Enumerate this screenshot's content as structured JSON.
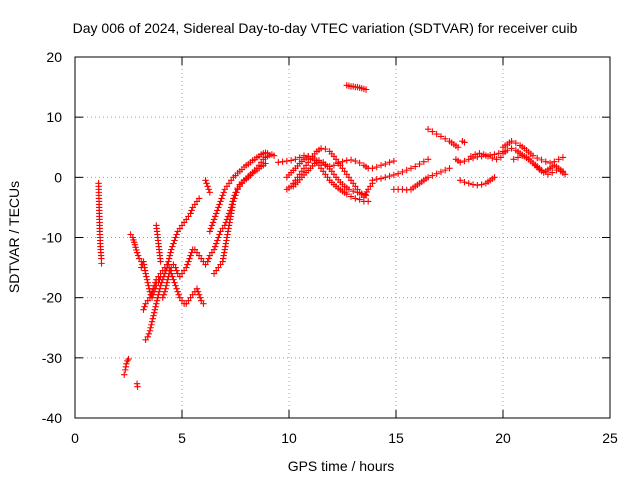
{
  "chart_data": {
    "type": "scatter",
    "title": "Day 006 of 2024, Sidereal Day-to-day VTEC variation (SDTVAR) for receiver cuib",
    "xlabel": "GPS time / hours",
    "ylabel": "SDTVAR / TECUs",
    "xlim": [
      0,
      25
    ],
    "ylim": [
      -40,
      20
    ],
    "xticks": [
      0,
      5,
      10,
      15,
      20,
      25
    ],
    "yticks": [
      -40,
      -30,
      -20,
      -10,
      0,
      10,
      20
    ],
    "xtick_labels": [
      "0",
      "5",
      "10",
      "15",
      "20",
      "25"
    ],
    "ytick_labels": [
      "-40",
      "-30",
      "-20",
      "-10",
      "0",
      "10",
      "20"
    ],
    "grid": true,
    "marker": "+",
    "color": "#ff0000",
    "series": [
      {
        "name": "t1",
        "x": [
          1.1,
          1.11,
          1.12,
          1.13,
          1.14,
          1.15,
          1.16,
          1.17,
          1.18,
          1.19,
          1.2,
          1.21,
          1.22,
          1.23,
          1.24
        ],
        "y": [
          -1,
          -2,
          -3.5,
          -5,
          -6.5,
          -8,
          -9,
          -10,
          -11,
          -11.5,
          -12,
          -12.5,
          -13,
          -13.5,
          -14.3
        ]
      },
      {
        "name": "t2",
        "x": [
          2.3,
          2.35,
          2.4,
          2.45,
          2.5
        ],
        "y": [
          -32.8,
          -32,
          -31,
          -30.5,
          -30.2
        ]
      },
      {
        "name": "t3",
        "x": [
          2.9,
          2.92
        ],
        "y": [
          -34.3,
          -34.8
        ]
      },
      {
        "name": "t4",
        "x": [
          2.6,
          2.7,
          2.8,
          2.9,
          3.0,
          3.1
        ],
        "y": [
          -9.5,
          -10,
          -11.2,
          -12.5,
          -13.5,
          -14
        ]
      },
      {
        "name": "t5",
        "x": [
          3.3,
          3.4,
          3.5,
          3.6,
          3.7,
          3.8,
          3.9,
          4.0,
          4.1,
          4.2,
          4.3,
          4.4,
          4.5,
          4.6,
          4.7,
          4.8,
          4.9,
          5.0,
          5.1,
          5.2,
          5.3,
          5.4,
          5.5,
          5.6,
          5.7,
          5.8
        ],
        "y": [
          -27,
          -26.5,
          -25.5,
          -24,
          -22.5,
          -21,
          -19.5,
          -18,
          -17,
          -16,
          -15,
          -13.5,
          -12,
          -11,
          -10,
          -9,
          -8.5,
          -8,
          -7.5,
          -7,
          -6.5,
          -6,
          -5,
          -4.5,
          -4,
          -3.5
        ]
      },
      {
        "name": "t6",
        "x": [
          3.2,
          3.3,
          3.4,
          3.5,
          3.6,
          3.7,
          3.8,
          3.9,
          4.0,
          4.1,
          4.2,
          4.3,
          4.4,
          4.5,
          4.6,
          4.7,
          4.8,
          4.9,
          5.0,
          5.1,
          5.2,
          5.3,
          5.4,
          5.5,
          5.6,
          5.7,
          5.8,
          5.9,
          6.0
        ],
        "y": [
          -22,
          -21,
          -20.5,
          -20,
          -19,
          -18,
          -17,
          -16.5,
          -16,
          -15.5,
          -15,
          -14.5,
          -15,
          -16,
          -17,
          -18,
          -19,
          -20,
          -20.5,
          -21,
          -21,
          -20.5,
          -20,
          -19.5,
          -19,
          -18.5,
          -19.5,
          -20.5,
          -21
        ]
      },
      {
        "name": "t7",
        "x": [
          3.1,
          3.2,
          3.3,
          3.4,
          3.5,
          3.6,
          3.7,
          3.8,
          3.9,
          4.0
        ],
        "y": [
          -15,
          -14,
          -16,
          -17.5,
          -19,
          -20,
          -19,
          -18,
          -17.5,
          -16.5
        ]
      },
      {
        "name": "t8",
        "x": [
          3.8,
          3.85,
          3.9,
          3.95,
          4.0
        ],
        "y": [
          -8,
          -9.5,
          -11,
          -12.5,
          -14
        ]
      },
      {
        "name": "t9",
        "x": [
          4.1,
          4.2,
          4.3,
          4.4,
          4.5,
          4.6,
          4.7,
          4.8,
          4.9,
          5.0,
          5.1,
          5.2,
          5.3,
          5.4,
          5.5,
          5.6,
          5.7,
          5.8,
          5.9,
          6.0,
          6.1,
          6.2,
          6.3,
          6.4,
          6.5,
          6.6,
          6.7,
          6.8,
          6.9,
          7.0,
          7.1,
          7.2,
          7.3,
          7.4,
          7.5,
          7.6,
          7.7,
          7.8,
          7.9,
          8.0,
          8.1,
          8.2,
          8.3,
          8.4,
          8.5,
          8.6,
          8.7,
          8.8,
          8.9
        ],
        "y": [
          -20,
          -19,
          -17.5,
          -16,
          -15,
          -14.5,
          -15,
          -16,
          -16.5,
          -16,
          -15.5,
          -15,
          -14,
          -13,
          -12,
          -12,
          -12.5,
          -13,
          -13.5,
          -14,
          -14.5,
          -14,
          -13,
          -12.5,
          -12,
          -11,
          -10,
          -9,
          -8.5,
          -8,
          -7,
          -6,
          -5,
          -3.5,
          -2.5,
          -1.8,
          -1.2,
          -0.8,
          -0.5,
          -0.3,
          0,
          0.3,
          0.7,
          1,
          1.2,
          1.5,
          1.8,
          2,
          2.3
        ]
      },
      {
        "name": "t10",
        "x": [
          6.3,
          6.4,
          6.5,
          6.6,
          6.7,
          6.8,
          6.9,
          7.0,
          7.1,
          7.2,
          7.3,
          7.4,
          7.5,
          7.6,
          7.7,
          7.8,
          7.9,
          8.0,
          8.1,
          8.2,
          8.3,
          8.4,
          8.5,
          8.6,
          8.7,
          8.8,
          8.9,
          9.0
        ],
        "y": [
          -9,
          -8,
          -7,
          -6,
          -5,
          -4,
          -3,
          -2,
          -1.5,
          -1,
          -0.5,
          0,
          0.3,
          0.7,
          1,
          1.3,
          1.7,
          2,
          2.2,
          2.5,
          2.8,
          3,
          3.3,
          3.5,
          3.8,
          4,
          4.1,
          4
        ]
      },
      {
        "name": "t11",
        "x": [
          6.5,
          6.6,
          6.7,
          6.8,
          6.9,
          7.0,
          7.1,
          7.2,
          7.3,
          7.4,
          7.5,
          7.6,
          7.7,
          7.8,
          7.9,
          8.0,
          8.1,
          8.2,
          8.3,
          8.4,
          8.5,
          8.6,
          8.7,
          8.8,
          8.9,
          9.0,
          9.1,
          9.2,
          9.3
        ],
        "y": [
          -16,
          -15.5,
          -15,
          -14.5,
          -14,
          -12,
          -10,
          -8,
          -6,
          -4,
          -3,
          -2,
          -1.5,
          -1,
          -0.5,
          -0.2,
          0.2,
          0.5,
          0.8,
          1.2,
          1.5,
          2,
          2.5,
          3,
          3.3,
          3.5,
          3.7,
          3.8,
          3.6
        ]
      },
      {
        "name": "t12",
        "x": [
          6.1,
          6.15,
          6.2,
          6.25,
          6.3
        ],
        "y": [
          -0.5,
          -1,
          -1.5,
          -2,
          -2.5
        ]
      },
      {
        "name": "t13",
        "x": [
          9.5,
          9.7,
          9.9,
          10.1,
          10.3,
          10.5,
          10.7,
          10.9,
          11.1,
          11.3,
          11.5,
          11.7,
          11.9,
          12.1,
          12.3,
          12.5,
          12.7,
          12.9,
          13.1,
          13.3,
          13.5,
          13.7,
          13.9,
          14.1,
          14.3,
          14.5,
          14.7,
          14.9
        ],
        "y": [
          2.5,
          2.6,
          2.7,
          2.8,
          3,
          3.3,
          3.6,
          3.5,
          3.2,
          2.8,
          2.4,
          2,
          1.8,
          2,
          2.3,
          2.6,
          2.8,
          2.9,
          2.7,
          2.4,
          2,
          1.5,
          1.5,
          1.7,
          2,
          2.2,
          2.5,
          2.7
        ]
      },
      {
        "name": "t14",
        "x": [
          9.9,
          10.1,
          10.3,
          10.5,
          10.7,
          10.9,
          11.1,
          11.3,
          11.5,
          11.7,
          11.9,
          12.1,
          12.3,
          12.5,
          12.7,
          12.9,
          13.1,
          13.3,
          13.5,
          13.7,
          13.9
        ],
        "y": [
          -2,
          -1.5,
          -0.5,
          0.5,
          1.5,
          2.5,
          3.5,
          4.3,
          4.8,
          4.7,
          4.3,
          3.5,
          2.5,
          1.5,
          0.5,
          -0.5,
          -1.5,
          -2.5,
          -3.3,
          -2,
          -1
        ]
      },
      {
        "name": "t15",
        "x": [
          9.9,
          10.1,
          10.3,
          10.5,
          10.7,
          10.9,
          11.1,
          11.3,
          11.5,
          11.7,
          11.9,
          12.1,
          12.3,
          12.5,
          12.7,
          12.9,
          13.1,
          13.3,
          13.5,
          13.7
        ],
        "y": [
          0,
          0.8,
          1.5,
          2.3,
          3,
          3.5,
          3.2,
          2.5,
          1.5,
          0.5,
          -0.5,
          -1.2,
          -1.8,
          -2.3,
          -2.8,
          -3.2,
          -3.5,
          -3.7,
          -4,
          -4
        ]
      },
      {
        "name": "t16",
        "x": [
          10.2,
          10.4,
          10.6,
          10.8,
          11.0,
          11.2,
          11.4,
          11.6,
          11.8,
          12.0,
          12.2,
          12.4,
          12.6,
          12.8,
          13.0,
          13.2,
          13.4,
          13.6
        ],
        "y": [
          -1.5,
          -0.8,
          0,
          0.8,
          1.5,
          2.3,
          2.8,
          2.5,
          1.8,
          1,
          0,
          -0.8,
          -1.5,
          -2,
          -2.3,
          -2.5,
          -2.7,
          -3
        ]
      },
      {
        "name": "t17",
        "x": [
          12.7,
          12.8,
          12.9,
          13.0,
          13.1,
          13.2,
          13.3,
          13.4,
          13.5,
          13.6
        ],
        "y": [
          15.3,
          15.2,
          15.1,
          15.1,
          15,
          15,
          14.9,
          14.8,
          14.7,
          14.6
        ]
      },
      {
        "name": "t18",
        "x": [
          13.9,
          14.1,
          14.3,
          14.5,
          14.7,
          14.9,
          15.1,
          15.3,
          15.5,
          15.7,
          15.9,
          16.1,
          16.3,
          16.5
        ],
        "y": [
          -0.5,
          -0.3,
          -0.2,
          0,
          0.2,
          0.4,
          0.6,
          0.9,
          1.2,
          1.5,
          1.8,
          2.2,
          2.6,
          3
        ]
      },
      {
        "name": "t19",
        "x": [
          14.9,
          15.1,
          15.3,
          15.5,
          15.7,
          15.9,
          16.1,
          16.3,
          16.5,
          16.7,
          16.9,
          17.1,
          17.3,
          17.5
        ],
        "y": [
          -2,
          -2,
          -2,
          -2.1,
          -2,
          -1.5,
          -1,
          -0.5,
          0,
          0.3,
          0.6,
          0.9,
          1.2,
          1.5
        ]
      },
      {
        "name": "t20",
        "x": [
          16.5,
          16.7,
          16.9,
          17.1,
          17.3,
          17.5,
          17.7,
          17.9
        ],
        "y": [
          8,
          7.6,
          7.2,
          6.8,
          6.4,
          6,
          5.5,
          5
        ]
      },
      {
        "name": "t21",
        "x": [
          18.1,
          18.2
        ],
        "y": [
          6,
          5.8
        ]
      },
      {
        "name": "t22",
        "x": [
          17.8,
          18.0,
          18.2,
          18.4,
          18.6,
          18.8,
          19.0,
          19.2,
          19.4,
          19.6,
          19.8,
          20.0
        ],
        "y": [
          3,
          2.5,
          2.7,
          3,
          3.2,
          3.4,
          3.5,
          3.6,
          3.7,
          3.8,
          4,
          4.3
        ]
      },
      {
        "name": "t23",
        "x": [
          18.0,
          18.2,
          18.4,
          18.6,
          18.8,
          19.0,
          19.2,
          19.4,
          19.6
        ],
        "y": [
          -0.5,
          -0.8,
          -1,
          -1.2,
          -1.3,
          -1.2,
          -1,
          -0.5,
          0
        ]
      },
      {
        "name": "t24",
        "x": [
          18.5,
          18.7,
          18.9,
          19.1,
          19.3,
          19.5,
          19.7,
          19.9
        ],
        "y": [
          3.5,
          3.8,
          4,
          3.8,
          3.5,
          3.2,
          3,
          3.3
        ]
      },
      {
        "name": "t25",
        "x": [
          20.0,
          20.2,
          20.4,
          20.6,
          20.8,
          21.0,
          21.2,
          21.4,
          21.6,
          21.8,
          22.0,
          22.2,
          22.4,
          22.6,
          22.8
        ],
        "y": [
          5,
          5.5,
          6,
          5.7,
          5.3,
          4.8,
          4.2,
          3.6,
          3.2,
          2.9,
          2.6,
          2.4,
          2.6,
          3,
          3.3
        ]
      },
      {
        "name": "t26",
        "x": [
          20.0,
          20.2,
          20.4,
          20.6,
          20.8,
          21.0,
          21.2,
          21.4,
          21.6,
          21.8,
          22.0,
          22.2,
          22.4,
          22.6,
          22.8
        ],
        "y": [
          4,
          4.5,
          4.8,
          4.5,
          4,
          3.5,
          3,
          2.4,
          1.8,
          1.2,
          1,
          1.5,
          2,
          1.5,
          1
        ]
      },
      {
        "name": "t27",
        "x": [
          20.5,
          20.7,
          20.9,
          21.1,
          21.3,
          21.5,
          21.7,
          21.9,
          22.1,
          22.3,
          22.5,
          22.7,
          22.9
        ],
        "y": [
          3,
          3.3,
          3.6,
          3.3,
          2.7,
          2,
          1.3,
          0.8,
          0.5,
          0.8,
          1.2,
          1,
          0.5
        ]
      }
    ]
  }
}
